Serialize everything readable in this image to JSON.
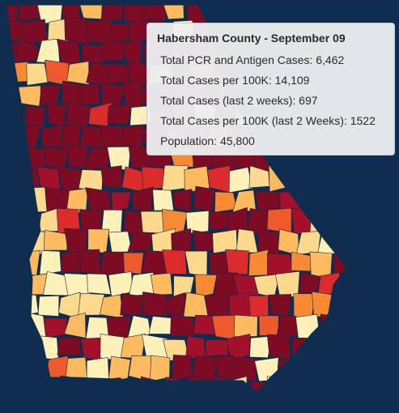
{
  "tooltip": {
    "title": "Habersham County - September 09",
    "rows": [
      "Total PCR and Antigen Cases: 6,462",
      "Total Cases per 100K: 14,109",
      "Total Cases (last 2 weeks): 697",
      "Total Cases per 100K (last 2 Weeks): 1522",
      "Population: 45,800"
    ]
  }
}
